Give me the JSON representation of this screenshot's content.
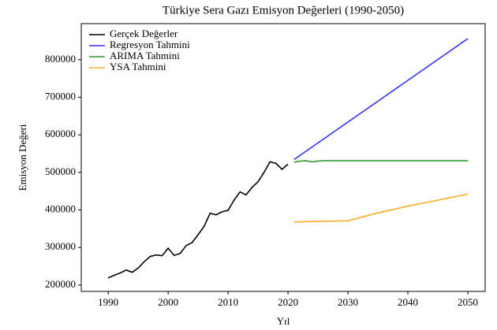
{
  "chart_data": {
    "type": "line",
    "title": "Türkiye Sera Gazı Emisyon Değerleri (1990-2050)",
    "xlabel": "Yıl",
    "ylabel": "Emisyon Değeri",
    "xlim": [
      1985.5,
      2052.9
    ],
    "ylim": [
      183000,
      896000
    ],
    "xticks": [
      1990,
      2000,
      2010,
      2020,
      2030,
      2040,
      2050
    ],
    "yticks": [
      200000,
      300000,
      400000,
      500000,
      600000,
      700000,
      800000
    ],
    "legend": "upper left",
    "grid": false,
    "series": [
      {
        "name": "Gerçek Değerler",
        "color": "#000000",
        "x": [
          1990,
          1991,
          1992,
          1993,
          1994,
          1995,
          1996,
          1997,
          1998,
          1999,
          2000,
          2001,
          2002,
          2003,
          2004,
          2005,
          2006,
          2007,
          2008,
          2009,
          2010,
          2011,
          2012,
          2013,
          2014,
          2015,
          2016,
          2017,
          2018,
          2019,
          2020
        ],
        "values": [
          219000,
          226000,
          232000,
          240000,
          234000,
          245000,
          262000,
          276000,
          280000,
          278000,
          298000,
          279000,
          284000,
          305000,
          313000,
          334000,
          356000,
          391000,
          387000,
          395000,
          399000,
          426000,
          448000,
          440000,
          460000,
          475000,
          500000,
          528000,
          524000,
          508000,
          522000
        ]
      },
      {
        "name": "Regresyon Tahmini",
        "color": "#3333ff",
        "x": [
          2021,
          2050
        ],
        "values": [
          534000,
          856000
        ]
      },
      {
        "name": "ARIMA Tahmini",
        "color": "#339933",
        "x": [
          2021,
          2022,
          2023,
          2024,
          2025,
          2026,
          2030,
          2040,
          2050
        ],
        "values": [
          527000,
          530000,
          531000,
          528000,
          530000,
          531000,
          531000,
          531000,
          531000
        ]
      },
      {
        "name": "YSA Tahmini",
        "color": "#ffaa22",
        "x": [
          2021,
          2030,
          2035,
          2040,
          2045,
          2050
        ],
        "values": [
          368000,
          371000,
          392000,
          410000,
          426000,
          442000
        ]
      }
    ]
  }
}
